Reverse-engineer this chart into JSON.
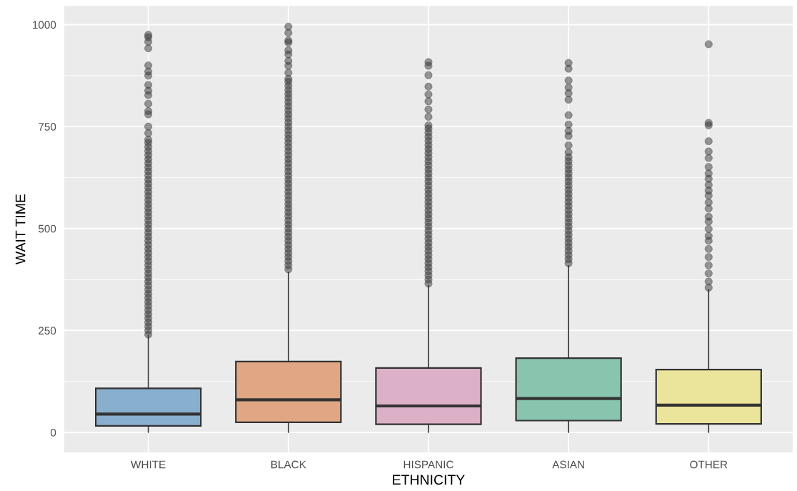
{
  "chart_data": {
    "type": "box",
    "xlabel": "ETHNICITY",
    "ylabel": "WAIT TIME",
    "categories": [
      "WHITE",
      "BLACK",
      "HISPANIC",
      "ASIAN",
      "OTHER"
    ],
    "colors": [
      "#89afcf",
      "#e1a784",
      "#dcb0c6",
      "#89c4ae",
      "#ebe49b"
    ],
    "boxes": [
      {
        "low": 0,
        "q1": 16,
        "median": 45,
        "q3": 108,
        "high": 238,
        "outliers": [
          975,
          969,
          958,
          942,
          900,
          885,
          875,
          852,
          838,
          827,
          806,
          788,
          780,
          750,
          734,
          718,
          710,
          700,
          690,
          680,
          670,
          660,
          650,
          640,
          630,
          620,
          610,
          600,
          590,
          580,
          570,
          560,
          550,
          540,
          530,
          520,
          510,
          500,
          490,
          480,
          470,
          460,
          450,
          440,
          430,
          420,
          410,
          400,
          390,
          380,
          370,
          360,
          350,
          340,
          330,
          320,
          310,
          300,
          290,
          280,
          270,
          260,
          250,
          240
        ]
      },
      {
        "low": 0,
        "q1": 25,
        "median": 80,
        "q3": 174,
        "high": 393,
        "outliers": [
          995,
          980,
          961,
          956,
          937,
          927,
          911,
          899,
          882,
          867,
          860,
          850,
          840,
          830,
          820,
          810,
          800,
          790,
          780,
          770,
          760,
          750,
          740,
          730,
          720,
          710,
          700,
          690,
          680,
          670,
          660,
          650,
          640,
          630,
          620,
          610,
          600,
          590,
          580,
          570,
          560,
          550,
          540,
          530,
          520,
          510,
          500,
          490,
          480,
          470,
          460,
          450,
          440,
          430,
          420,
          410,
          400
        ]
      },
      {
        "low": 0,
        "q1": 20,
        "median": 65,
        "q3": 158,
        "high": 361,
        "outliers": [
          908,
          899,
          876,
          848,
          829,
          812,
          792,
          774,
          753,
          745,
          735,
          725,
          715,
          705,
          695,
          685,
          675,
          665,
          655,
          645,
          635,
          625,
          615,
          605,
          595,
          585,
          575,
          565,
          555,
          545,
          535,
          525,
          515,
          505,
          495,
          485,
          475,
          465,
          455,
          445,
          435,
          425,
          415,
          405,
          395,
          385,
          375,
          365
        ]
      },
      {
        "low": 0,
        "q1": 29,
        "median": 83,
        "q3": 182,
        "high": 409,
        "outliers": [
          906,
          892,
          863,
          846,
          832,
          816,
          778,
          755,
          739,
          727,
          704,
          687,
          675,
          665,
          655,
          645,
          635,
          625,
          615,
          605,
          595,
          585,
          575,
          565,
          555,
          545,
          535,
          525,
          515,
          505,
          495,
          485,
          475,
          465,
          455,
          445,
          435,
          425,
          415
        ]
      },
      {
        "low": 0,
        "q1": 21,
        "median": 67,
        "q3": 154,
        "high": 350,
        "outliers": [
          952,
          759,
          753,
          714,
          689,
          673,
          651,
          635,
          622,
          607,
          593,
          581,
          564,
          549,
          529,
          517,
          499,
          482,
          470,
          450,
          430,
          410,
          390,
          370,
          355
        ]
      }
    ],
    "ylim": [
      -49,
      1046
    ],
    "yticks": [
      0,
      250,
      500,
      750,
      1000
    ],
    "grid": true,
    "legend": false
  }
}
